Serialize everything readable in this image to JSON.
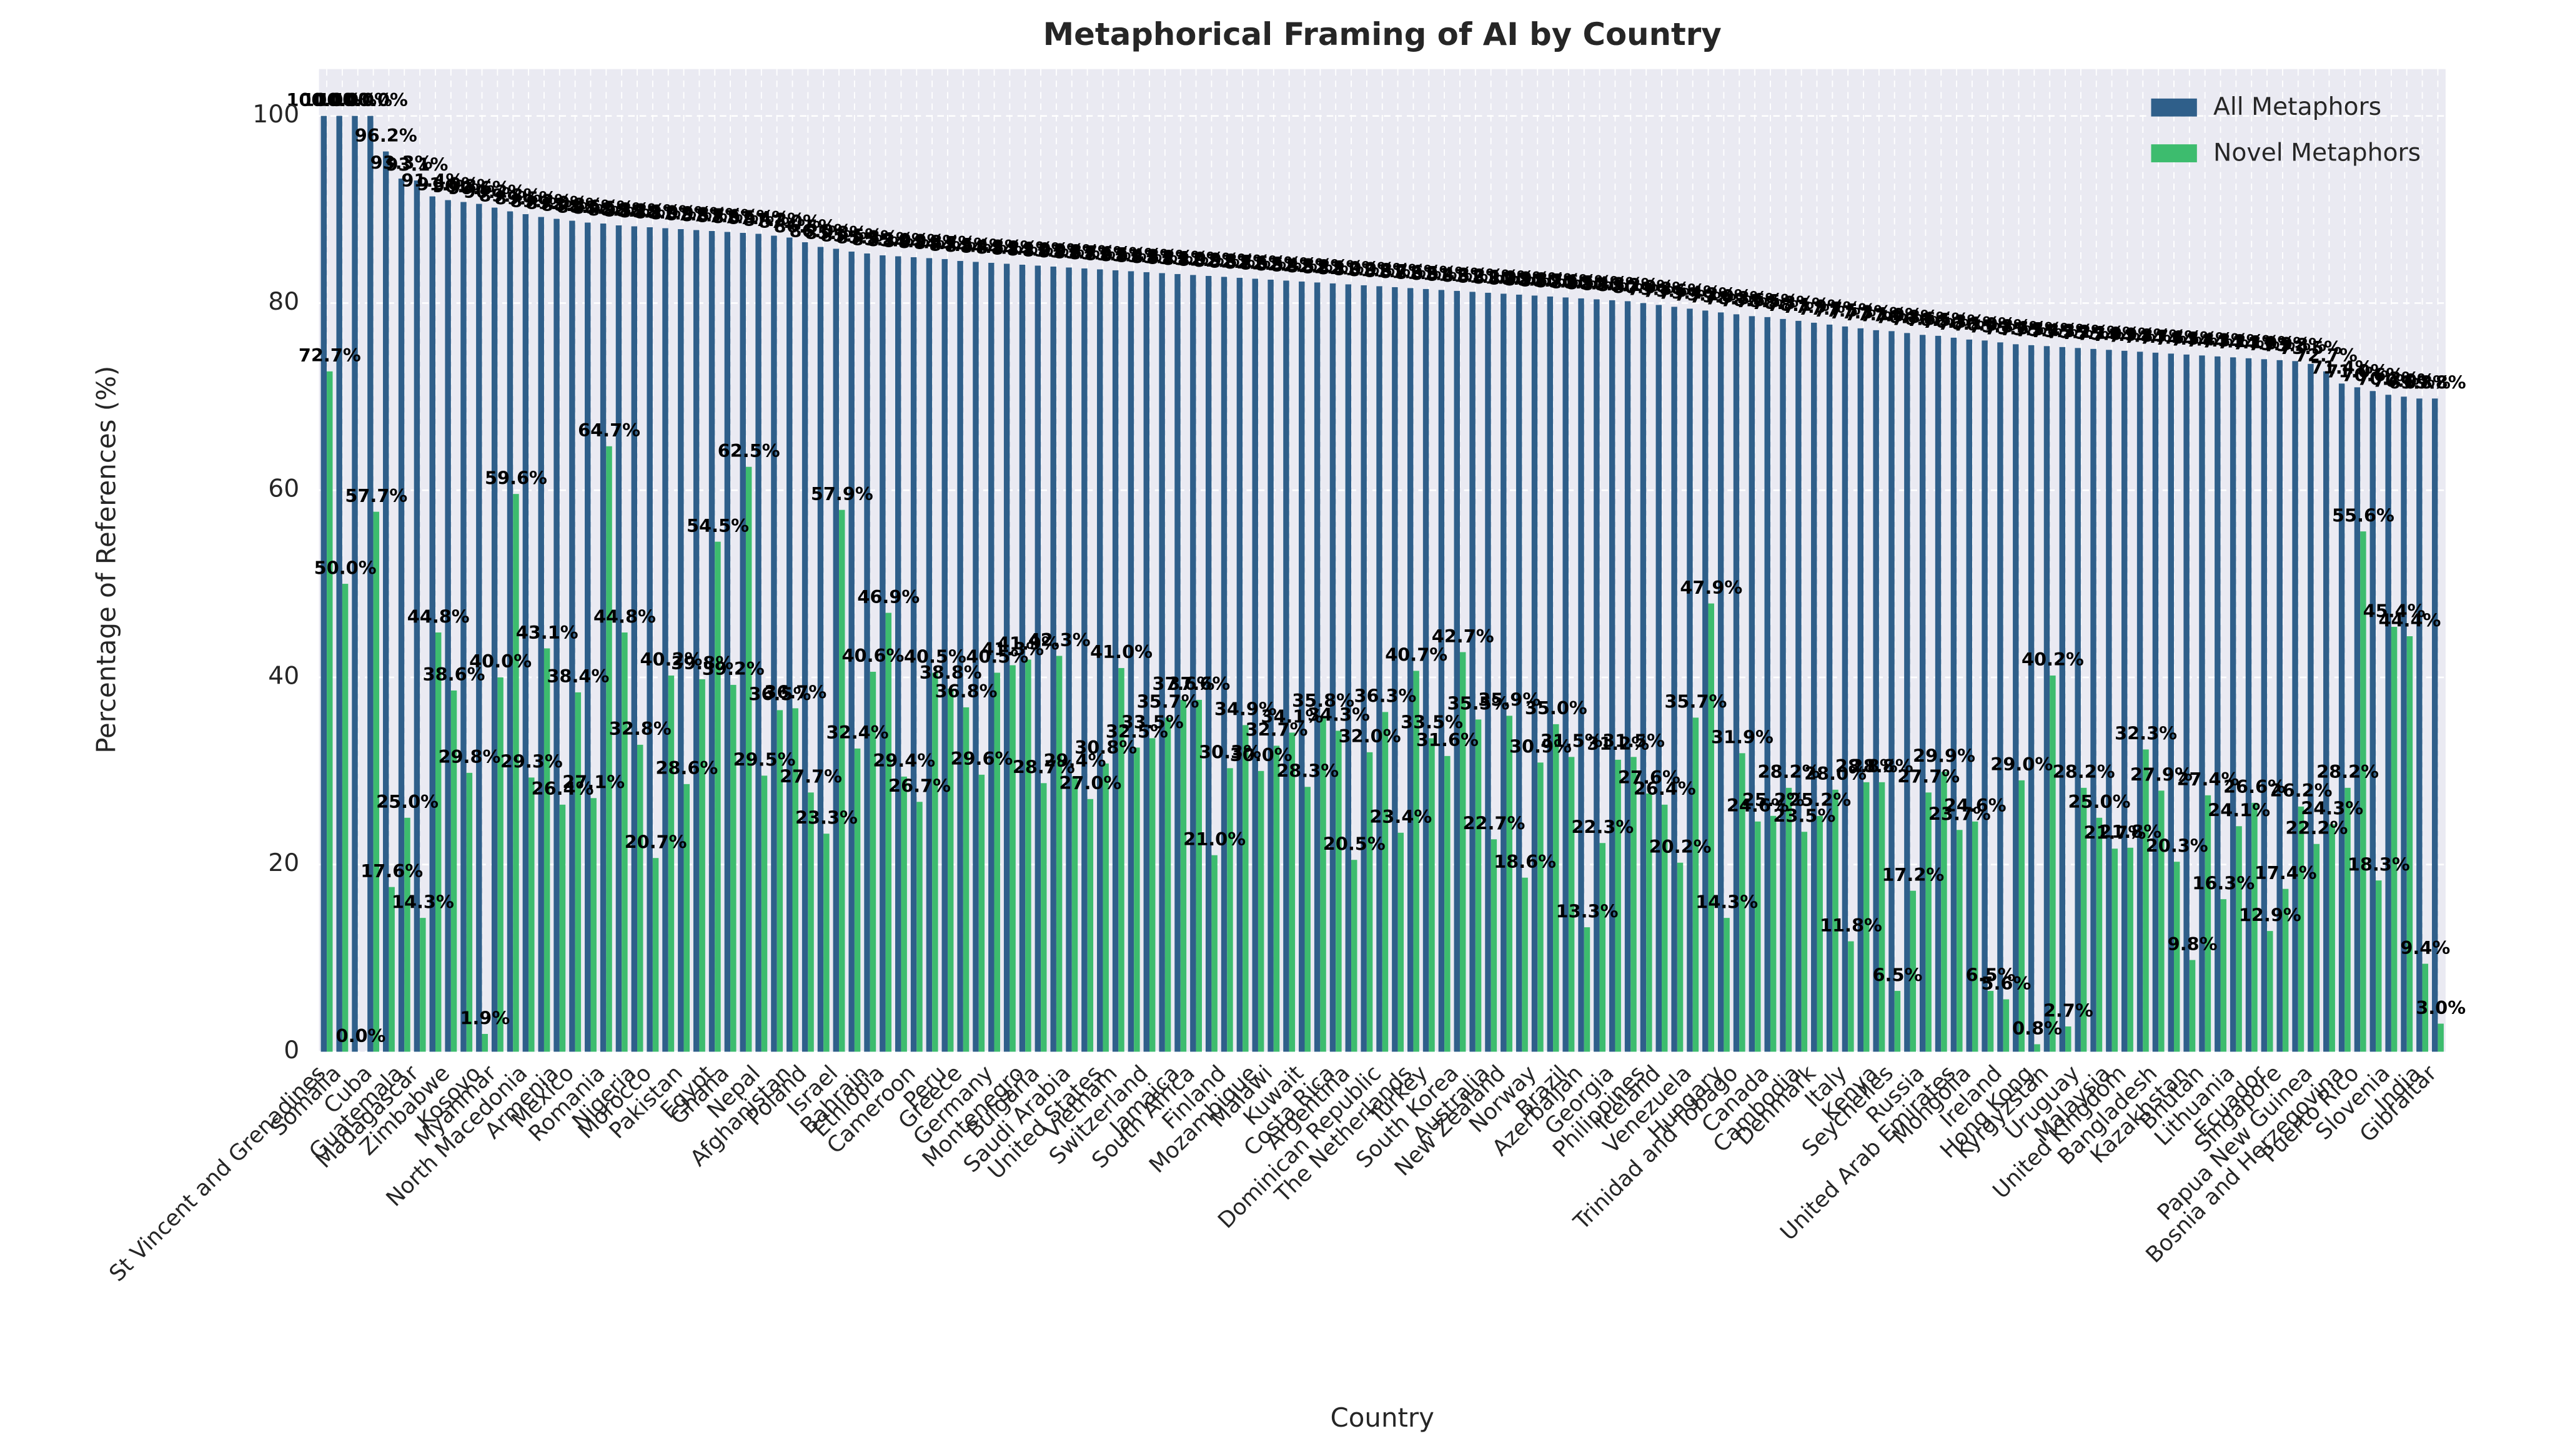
{
  "chart_data": {
    "type": "bar",
    "title": "Metaphorical Framing of AI by Country",
    "x_label": "Country",
    "y_label": "Percentage of References (%)",
    "categories": [
      "St Vincent and Grenadines",
      "Somalia",
      null,
      "Cuba",
      null,
      "Guatemala",
      "Madagascar",
      null,
      "Zimbabwe",
      null,
      "Kosovo",
      "Myanmar",
      null,
      "North Macedonia",
      null,
      "Armenia",
      "Mexico",
      null,
      "Romania",
      null,
      "Nigeria",
      "Morocco",
      null,
      "Pakistan",
      null,
      "Egypt",
      "Ghana",
      null,
      "Nepal",
      null,
      "Afghanistan",
      "Poland",
      null,
      "Israel",
      null,
      "Bahrain",
      "Ethiopia",
      null,
      "Cameroon",
      null,
      "Peru",
      "Greece",
      null,
      "Germany",
      null,
      "Montenegro",
      "Bulgaria",
      null,
      "Saudi Arabia",
      null,
      "United States",
      "Vietnam",
      null,
      "Switzerland",
      null,
      "Jamaica",
      "South Africa",
      null,
      "Finland",
      null,
      "Mozambique",
      "Malawi",
      null,
      "Kuwait",
      null,
      "Costa Rica",
      "Argentina",
      null,
      "Dominican Republic",
      null,
      "The Netherlands",
      "Turkey",
      null,
      "South Korea",
      null,
      "Australia",
      "New Zealand",
      null,
      "Norway",
      null,
      "Brazil",
      "Azerbaijan",
      null,
      "Georgia",
      null,
      "Philippines",
      "Iceland",
      null,
      "Venezuela",
      null,
      "Hungary",
      "Trinidad and Tobago",
      null,
      "Canada",
      null,
      "Cambodia",
      "Denmark",
      null,
      "Italy",
      null,
      "Kenya",
      "Seychelles",
      null,
      "Russia",
      null,
      "United Arab Emirates",
      "Mongolia",
      null,
      "Ireland",
      null,
      "Hong Kong",
      "Kyrgyzstan",
      null,
      "Uruguay",
      null,
      "Malaysia",
      "United Kingdom",
      null,
      "Bangladesh",
      null,
      "Kazakhstan",
      "Bhutan",
      null,
      "Lithuania",
      null,
      "Ecuador",
      "Singapore",
      null,
      "Papua New Guinea",
      null,
      "Bosnia and Herzegovina",
      "Puerto Rico",
      null,
      "Slovenia",
      null,
      "India",
      "Gibraltar"
    ],
    "series": [
      {
        "name": "All Metaphors",
        "color": "#2f5f8a",
        "values": [
          100,
          100,
          100,
          100,
          96.2,
          93.3,
          93.1,
          91.4,
          91.0,
          90.8,
          90.6,
          90.2,
          89.8,
          89.5,
          89.2,
          89.0,
          88.8,
          88.6,
          88.5,
          88.3,
          88.2,
          88.1,
          88.0,
          87.9,
          87.8,
          87.7,
          87.6,
          87.5,
          87.4,
          87.2,
          87.0,
          86.5,
          86.0,
          85.8,
          85.5,
          85.3,
          85.1,
          85.0,
          84.9,
          84.8,
          84.7,
          84.5,
          84.4,
          84.3,
          84.2,
          84.1,
          84.0,
          83.9,
          83.8,
          83.7,
          83.6,
          83.5,
          83.4,
          83.3,
          83.2,
          83.1,
          83.0,
          82.9,
          82.8,
          82.7,
          82.6,
          82.5,
          82.4,
          82.3,
          82.2,
          82.1,
          82.0,
          81.9,
          81.8,
          81.7,
          81.6,
          81.5,
          81.4,
          81.3,
          81.2,
          81.1,
          81.0,
          80.9,
          80.8,
          80.7,
          80.6,
          80.5,
          80.4,
          80.3,
          80.2,
          80.0,
          79.8,
          79.6,
          79.4,
          79.2,
          79.0,
          78.8,
          78.6,
          78.5,
          78.3,
          78.1,
          77.9,
          77.7,
          77.5,
          77.3,
          77.1,
          77.0,
          76.8,
          76.6,
          76.5,
          76.3,
          76.1,
          76.0,
          75.8,
          75.6,
          75.5,
          75.4,
          75.3,
          75.2,
          75.1,
          75.0,
          74.9,
          74.8,
          74.7,
          74.6,
          74.5,
          74.4,
          74.3,
          74.2,
          74.1,
          74.0,
          73.9,
          73.8,
          73.5,
          72.7,
          71.4,
          71.0,
          70.6,
          70.2,
          70.0,
          69.8,
          69.8
        ],
        "value_labels": [
          "100.0%",
          "100.0%",
          "100.0%",
          "100.0%",
          "96.2%",
          "93.3%",
          "93.1%",
          "91.4%",
          "91.0%",
          "90.8%",
          "90.6%",
          "90.2%",
          "89.8%",
          "89.5%",
          "89.2%",
          "89.0%",
          "88.8%",
          "88.6%",
          "88.5%",
          "88.3%",
          "88.2%",
          "88.1%",
          "88.0%",
          "87.9%",
          "87.8%",
          "87.7%",
          "87.6%",
          "87.5%",
          "87.4%",
          "87.2%",
          "87.0%",
          "86.5%",
          "86.0%",
          "85.8%",
          "85.5%",
          "85.3%",
          "85.1%",
          "85.0%",
          "84.9%",
          "84.8%",
          "84.7%",
          "84.5%",
          "84.4%",
          "84.3%",
          "84.2%",
          "84.1%",
          "84.0%",
          "83.9%",
          "83.8%",
          "83.7%",
          "83.6%",
          "83.5%",
          "83.4%",
          "83.3%",
          "83.2%",
          "83.1%",
          "83.0%",
          "82.9%",
          "82.8%",
          "82.7%",
          "82.6%",
          "82.5%",
          "82.4%",
          "82.3%",
          "82.2%",
          "82.1%",
          "82.0%",
          "81.9%",
          "81.8%",
          "81.7%",
          "81.6%",
          "81.5%",
          "81.4%",
          "81.3%",
          "81.2%",
          "81.1%",
          "81.0%",
          "80.9%",
          "80.8%",
          "80.7%",
          "80.6%",
          "80.5%",
          "80.4%",
          "80.3%",
          "80.2%",
          "80.0%",
          "79.8%",
          "79.6%",
          "79.4%",
          "79.2%",
          "79.0%",
          "78.8%",
          "78.6%",
          "78.5%",
          "78.3%",
          "78.1%",
          "77.9%",
          "77.7%",
          "77.5%",
          "77.3%",
          "77.1%",
          "77.0%",
          "76.8%",
          "76.6%",
          "76.5%",
          "76.3%",
          "76.1%",
          "76.0%",
          "75.8%",
          "75.6%",
          "75.5%",
          "75.4%",
          "75.3%",
          "75.2%",
          "75.1%",
          "75.0%",
          "74.9%",
          "74.8%",
          "74.7%",
          "74.6%",
          "74.5%",
          "74.4%",
          "74.3%",
          "74.2%",
          "74.1%",
          "74.0%",
          "73.9%",
          "73.8%",
          "73.5%",
          "72.7%",
          "71.4%",
          "71.0%",
          "70.6%",
          "70.2%",
          "70.0%",
          "69.8%",
          "69.8%"
        ]
      },
      {
        "name": "Novel Metaphors",
        "color": "#3dbc6e",
        "values": [
          72.7,
          50.0,
          0.0,
          57.7,
          17.6,
          25.0,
          14.3,
          44.8,
          38.6,
          29.8,
          1.9,
          40.0,
          59.6,
          29.3,
          43.1,
          26.4,
          38.4,
          27.1,
          64.7,
          44.8,
          32.8,
          20.7,
          40.2,
          28.6,
          39.8,
          54.5,
          39.2,
          62.5,
          29.5,
          36.5,
          36.7,
          27.7,
          23.3,
          57.9,
          32.4,
          40.6,
          46.9,
          29.4,
          26.7,
          40.5,
          38.8,
          36.8,
          29.6,
          40.5,
          41.3,
          41.9,
          28.7,
          42.3,
          29.4,
          27.0,
          30.8,
          41.0,
          32.5,
          33.5,
          35.7,
          37.6,
          37.6,
          21.0,
          30.3,
          34.9,
          30.0,
          32.7,
          34.1,
          28.3,
          35.8,
          34.3,
          20.5,
          32.0,
          36.3,
          23.4,
          40.7,
          33.5,
          31.6,
          42.7,
          35.5,
          22.7,
          35.9,
          18.6,
          30.9,
          35.0,
          31.5,
          13.3,
          22.3,
          31.2,
          31.5,
          27.6,
          26.4,
          20.2,
          35.7,
          47.9,
          14.3,
          31.9,
          24.6,
          25.2,
          28.2,
          23.5,
          25.2,
          28.0,
          11.8,
          28.8,
          28.8,
          6.5,
          17.2,
          27.7,
          29.9,
          23.7,
          24.6,
          6.5,
          5.6,
          29.0,
          0.8,
          40.2,
          2.7,
          28.2,
          25.0,
          21.7,
          21.8,
          32.3,
          27.9,
          20.3,
          9.8,
          27.4,
          16.3,
          24.1,
          26.6,
          12.9,
          17.4,
          26.2,
          22.2,
          24.3,
          28.2,
          55.6,
          18.3,
          45.4,
          44.4,
          9.4,
          3.0
        ],
        "value_labels": [
          "72.7%",
          "50.0%",
          "0.0%",
          "57.7%",
          "17.6%",
          "25.0%",
          "14.3%",
          "44.8%",
          "38.6%",
          "29.8%",
          "1.9%",
          "40.0%",
          "59.6%",
          "29.3%",
          "43.1%",
          "26.4%",
          "38.4%",
          "27.1%",
          "64.7%",
          "44.8%",
          "32.8%",
          "20.7%",
          "40.2%",
          "28.6%",
          "39.8%",
          "54.5%",
          "39.2%",
          "62.5%",
          "29.5%",
          "36.5%",
          "36.7%",
          "27.7%",
          "23.3%",
          "57.9%",
          "32.4%",
          "40.6%",
          "46.9%",
          "29.4%",
          "26.7%",
          "40.5%",
          "38.8%",
          "36.8%",
          "29.6%",
          "40.5%",
          "41.3%",
          "41.9%",
          "28.7%",
          "42.3%",
          "29.4%",
          "27.0%",
          "30.8%",
          "41.0%",
          "32.5%",
          "33.5%",
          "35.7%",
          "37.6%",
          "37.6%",
          "21.0%",
          "30.3%",
          "34.9%",
          "30.0%",
          "32.7%",
          "34.1%",
          "28.3%",
          "35.8%",
          "34.3%",
          "20.5%",
          "32.0%",
          "36.3%",
          "23.4%",
          "40.7%",
          "33.5%",
          "31.6%",
          "42.7%",
          "35.5%",
          "22.7%",
          "35.9%",
          "18.6%",
          "30.9%",
          "35.0%",
          "31.5%",
          "13.3%",
          "22.3%",
          "31.2%",
          "31.5%",
          "27.6%",
          "26.4%",
          "20.2%",
          "35.7%",
          "47.9%",
          "14.3%",
          "31.9%",
          "24.6%",
          "25.2%",
          "28.2%",
          "23.5%",
          "25.2%",
          "28.0%",
          "11.8%",
          "28.8%",
          "28.8%",
          "6.5%",
          "17.2%",
          "27.7%",
          "29.9%",
          "23.7%",
          "24.6%",
          "6.5%",
          "5.6%",
          "29.0%",
          "0.8%",
          "40.2%",
          "2.7%",
          "28.2%",
          "25.0%",
          "21.7%",
          "21.8%",
          "32.3%",
          "27.9%",
          "20.3%",
          "9.8%",
          "27.4%",
          "16.3%",
          "24.1%",
          "26.6%",
          "12.9%",
          "17.4%",
          "26.2%",
          "22.2%",
          "24.3%",
          "28.2%",
          "55.6%",
          "18.3%",
          "45.4%",
          "44.4%",
          "9.4%",
          "3.0%"
        ]
      }
    ],
    "ylim": [
      0,
      105
    ],
    "yticks": [
      0,
      20,
      40,
      60,
      80,
      100
    ],
    "grid": true,
    "legend": "upper right"
  }
}
